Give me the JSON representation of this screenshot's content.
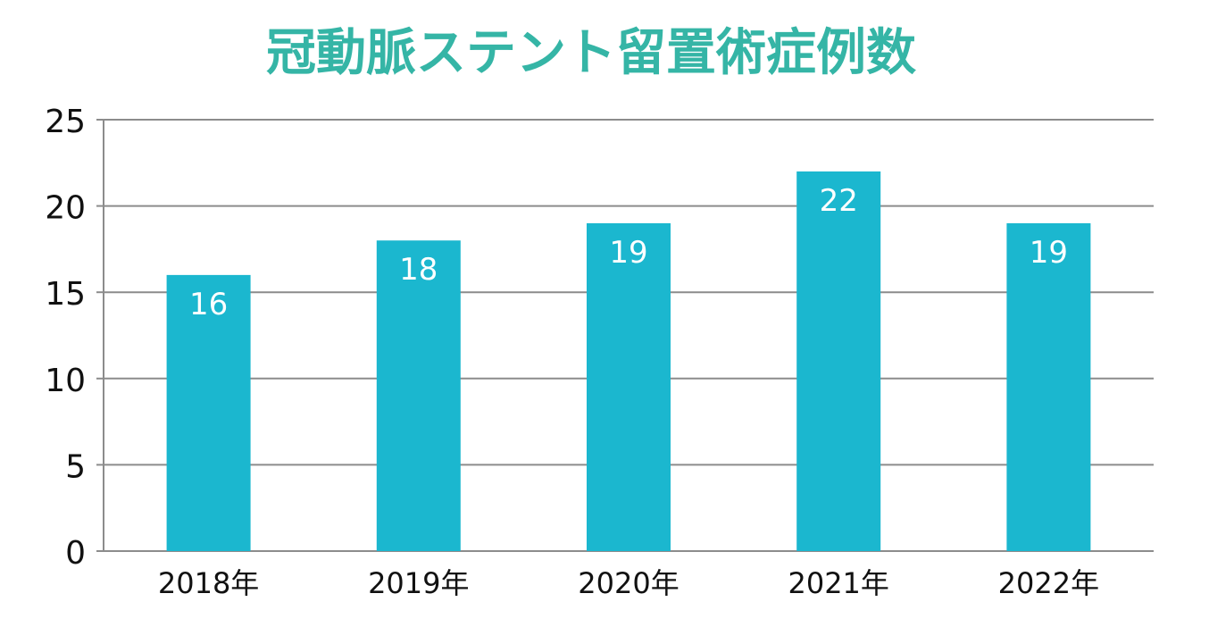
{
  "chart_data": {
    "type": "bar",
    "title": "冠動脈ステント留置術症例数",
    "categories": [
      "2018年",
      "2019年",
      "2020年",
      "2021年",
      "2022年"
    ],
    "values": [
      16,
      18,
      19,
      22,
      19
    ],
    "ylim": [
      0,
      25
    ],
    "yticks": [
      "0",
      "5",
      "10",
      "15",
      "20",
      "25"
    ],
    "xlabel": "",
    "ylabel": "",
    "grid": true,
    "legend": "none",
    "colors": {
      "bar": "#1bb7cf",
      "title": "#35b5a6",
      "grid": "#8c8c8c",
      "axis": "#8c8c8c",
      "tick_label": "#111111",
      "data_label": "#ffffff"
    }
  }
}
